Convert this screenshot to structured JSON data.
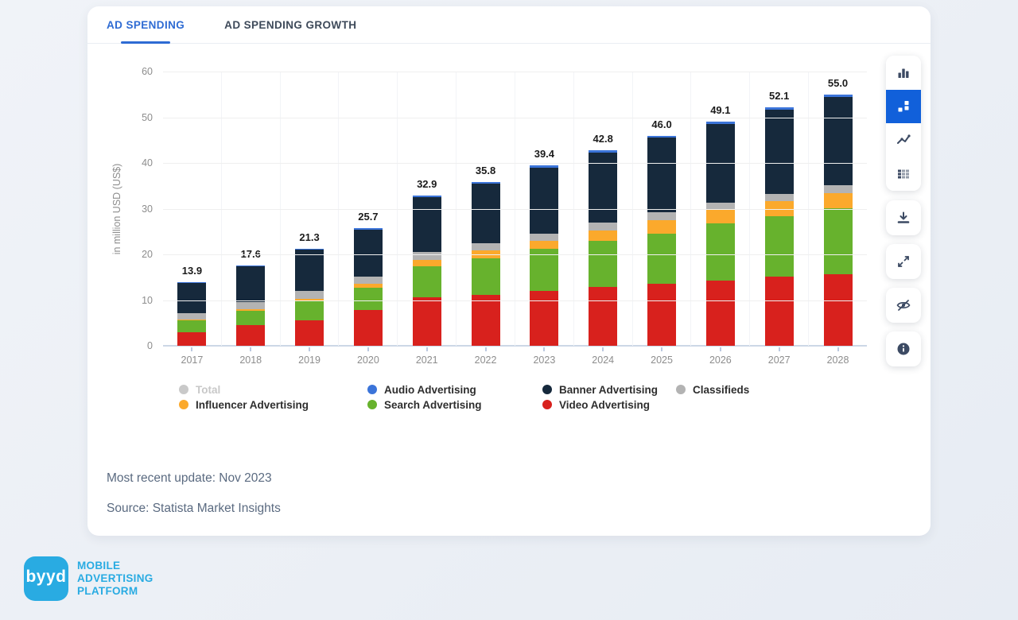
{
  "tabs": [
    {
      "label": "AD SPENDING",
      "active": true
    },
    {
      "label": "AD SPENDING GROWTH",
      "active": false
    }
  ],
  "chart_data": {
    "type": "bar",
    "stacked": true,
    "ylabel": "in million USD (US$)",
    "ylim": [
      0,
      60
    ],
    "yticks": [
      0,
      10,
      20,
      30,
      40,
      50,
      60
    ],
    "grid": "horizontal and faint vertical slot separators",
    "legend_position": "bottom",
    "categories": [
      "2017",
      "2018",
      "2019",
      "2020",
      "2021",
      "2022",
      "2023",
      "2024",
      "2025",
      "2026",
      "2027",
      "2028"
    ],
    "totals": [
      "13.9",
      "17.6",
      "21.3",
      "25.7",
      "32.9",
      "35.8",
      "39.4",
      "42.8",
      "46.0",
      "49.1",
      "52.1",
      "55.0"
    ],
    "series": [
      {
        "name": "Video Advertising",
        "color": "#d8211d",
        "values": [
          2.9,
          4.5,
          5.6,
          7.9,
          10.6,
          11.1,
          12.0,
          12.9,
          13.6,
          14.2,
          15.1,
          15.7
        ]
      },
      {
        "name": "Search Advertising",
        "color": "#67b22d",
        "values": [
          2.6,
          3.1,
          4.1,
          4.8,
          6.8,
          8.0,
          9.2,
          10.1,
          11.0,
          12.5,
          13.3,
          14.4
        ]
      },
      {
        "name": "Influencer Advertising",
        "color": "#fba92c",
        "values": [
          0.3,
          0.4,
          0.6,
          0.9,
          1.4,
          1.8,
          1.7,
          2.2,
          2.8,
          3.2,
          3.2,
          3.3
        ]
      },
      {
        "name": "Classifieds",
        "color": "#b3b3b3",
        "values": [
          1.3,
          1.5,
          1.7,
          1.6,
          1.8,
          1.5,
          1.6,
          1.8,
          1.8,
          1.4,
          1.7,
          1.8
        ]
      },
      {
        "name": "Banner Advertising",
        "color": "#16293c",
        "values": [
          6.6,
          7.9,
          9.1,
          10.2,
          11.9,
          13.0,
          14.5,
          15.3,
          16.3,
          17.3,
          18.4,
          19.3
        ]
      },
      {
        "name": "Audio Advertising",
        "color": "#3b74d9",
        "values": [
          0.2,
          0.2,
          0.2,
          0.3,
          0.4,
          0.4,
          0.4,
          0.5,
          0.5,
          0.5,
          0.4,
          0.5
        ]
      }
    ],
    "legend": [
      {
        "label": "Total",
        "color": "#c9c9c9",
        "muted": true
      },
      {
        "label": "Audio Advertising",
        "color": "#3b74d9",
        "muted": false
      },
      {
        "label": "Banner Advertising",
        "color": "#16293c",
        "muted": false
      },
      {
        "label": "Classifieds",
        "color": "#b3b3b3",
        "muted": false
      },
      {
        "label": "Influencer Advertising",
        "color": "#fba92c",
        "muted": false
      },
      {
        "label": "Search Advertising",
        "color": "#67b22d",
        "muted": false
      },
      {
        "label": "Video Advertising",
        "color": "#d8211d",
        "muted": false
      }
    ]
  },
  "footer": {
    "update": "Most recent update: Nov 2023",
    "source": "Source: Statista Market Insights"
  },
  "toolbar": {
    "chart_type_icons": [
      "bar-chart-icon",
      "stacked-bar-chart-icon",
      "line-chart-icon",
      "data-table-icon"
    ],
    "selected_chart_type": "stacked-bar-chart-icon",
    "action_icons": [
      "download-icon",
      "fullscreen-icon",
      "hide-labels-icon",
      "info-icon"
    ],
    "accent_color": "#1160da"
  },
  "logo": {
    "mark": "byyd",
    "line1": "MOBILE",
    "line2": "ADVERTISING",
    "line3": "PLATFORM",
    "brand_color": "#29abe2"
  }
}
